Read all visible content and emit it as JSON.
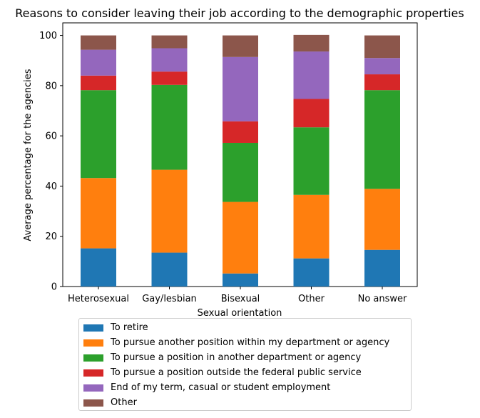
{
  "chart_data": {
    "type": "bar",
    "stacked": true,
    "title": "Reasons to consider leaving their job according to the demographic properties",
    "xlabel": "Sexual orientation",
    "ylabel": "Average percentage for the agencies",
    "ylim": [
      0,
      105
    ],
    "yticks": [
      0,
      20,
      40,
      60,
      80,
      100
    ],
    "categories": [
      "Heterosexual",
      "Gay/lesbian",
      "Bisexual",
      "Other",
      "No answer"
    ],
    "series": [
      {
        "name": "To retire",
        "color": "#1f77b4",
        "values": [
          15.2,
          13.5,
          5.2,
          11.2,
          14.6
        ]
      },
      {
        "name": "To pursue another position within my department or agency",
        "color": "#ff7f0e",
        "values": [
          28.0,
          33.0,
          28.5,
          25.3,
          24.3
        ]
      },
      {
        "name": "To pursue a position in another department or agency",
        "color": "#2ca02c",
        "values": [
          35.0,
          33.8,
          23.5,
          26.9,
          39.3
        ]
      },
      {
        "name": "To pursue a position outside the federal public service",
        "color": "#d62728",
        "values": [
          5.8,
          5.3,
          8.6,
          11.3,
          6.3
        ]
      },
      {
        "name": "End of my term, casual or student employment",
        "color": "#9467bd",
        "values": [
          10.3,
          9.3,
          25.6,
          18.9,
          6.5
        ]
      },
      {
        "name": "Other",
        "color": "#8c564b",
        "values": [
          5.7,
          5.1,
          8.6,
          6.6,
          9.0
        ]
      }
    ],
    "legend_position": "below"
  }
}
